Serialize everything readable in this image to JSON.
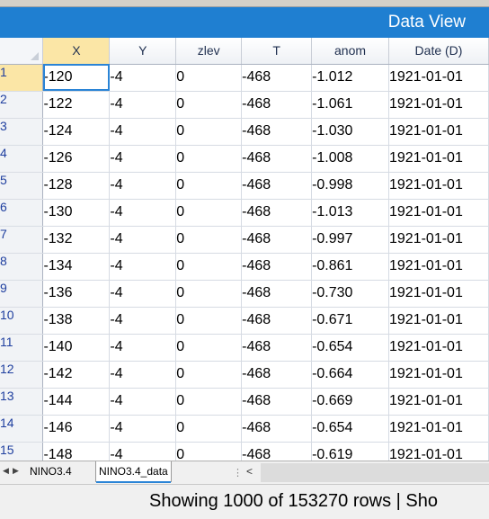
{
  "title": "Data View",
  "columns": [
    "X",
    "Y",
    "zlev",
    "T",
    "anom",
    "Date (D)"
  ],
  "rows": [
    {
      "num": "1",
      "cells": [
        "-120",
        "-4",
        "0",
        "-468",
        "-1.012",
        "1921-01-01"
      ]
    },
    {
      "num": "2",
      "cells": [
        "-122",
        "-4",
        "0",
        "-468",
        "-1.061",
        "1921-01-01"
      ]
    },
    {
      "num": "3",
      "cells": [
        "-124",
        "-4",
        "0",
        "-468",
        "-1.030",
        "1921-01-01"
      ]
    },
    {
      "num": "4",
      "cells": [
        "-126",
        "-4",
        "0",
        "-468",
        "-1.008",
        "1921-01-01"
      ]
    },
    {
      "num": "5",
      "cells": [
        "-128",
        "-4",
        "0",
        "-468",
        "-0.998",
        "1921-01-01"
      ]
    },
    {
      "num": "6",
      "cells": [
        "-130",
        "-4",
        "0",
        "-468",
        "-1.013",
        "1921-01-01"
      ]
    },
    {
      "num": "7",
      "cells": [
        "-132",
        "-4",
        "0",
        "-468",
        "-0.997",
        "1921-01-01"
      ]
    },
    {
      "num": "8",
      "cells": [
        "-134",
        "-4",
        "0",
        "-468",
        "-0.861",
        "1921-01-01"
      ]
    },
    {
      "num": "9",
      "cells": [
        "-136",
        "-4",
        "0",
        "-468",
        "-0.730",
        "1921-01-01"
      ]
    },
    {
      "num": "10",
      "cells": [
        "-138",
        "-4",
        "0",
        "-468",
        "-0.671",
        "1921-01-01"
      ]
    },
    {
      "num": "11",
      "cells": [
        "-140",
        "-4",
        "0",
        "-468",
        "-0.654",
        "1921-01-01"
      ]
    },
    {
      "num": "12",
      "cells": [
        "-142",
        "-4",
        "0",
        "-468",
        "-0.664",
        "1921-01-01"
      ]
    },
    {
      "num": "13",
      "cells": [
        "-144",
        "-4",
        "0",
        "-468",
        "-0.669",
        "1921-01-01"
      ]
    },
    {
      "num": "14",
      "cells": [
        "-146",
        "-4",
        "0",
        "-468",
        "-0.654",
        "1921-01-01"
      ]
    },
    {
      "num": "15",
      "cells": [
        "-148",
        "-4",
        "0",
        "-468",
        "-0.619",
        "1921-01-01"
      ]
    }
  ],
  "sheet_tabs": [
    "NINO3.4",
    "NINO3.4_data"
  ],
  "active_tab": "NINO3.4_data",
  "status_text": "Showing 1000 of 153270 rows | Sho",
  "icons": {
    "tab_prev": "triangle-left-icon",
    "tab_next": "triangle-right-icon",
    "scroll_left": "chevron-left-icon",
    "splitter": "vertical-dots-icon"
  },
  "colors": {
    "title_bar": "#1f7fd1",
    "selected_header": "#fbe6a6",
    "active_cell_border": "#2a84d6"
  }
}
